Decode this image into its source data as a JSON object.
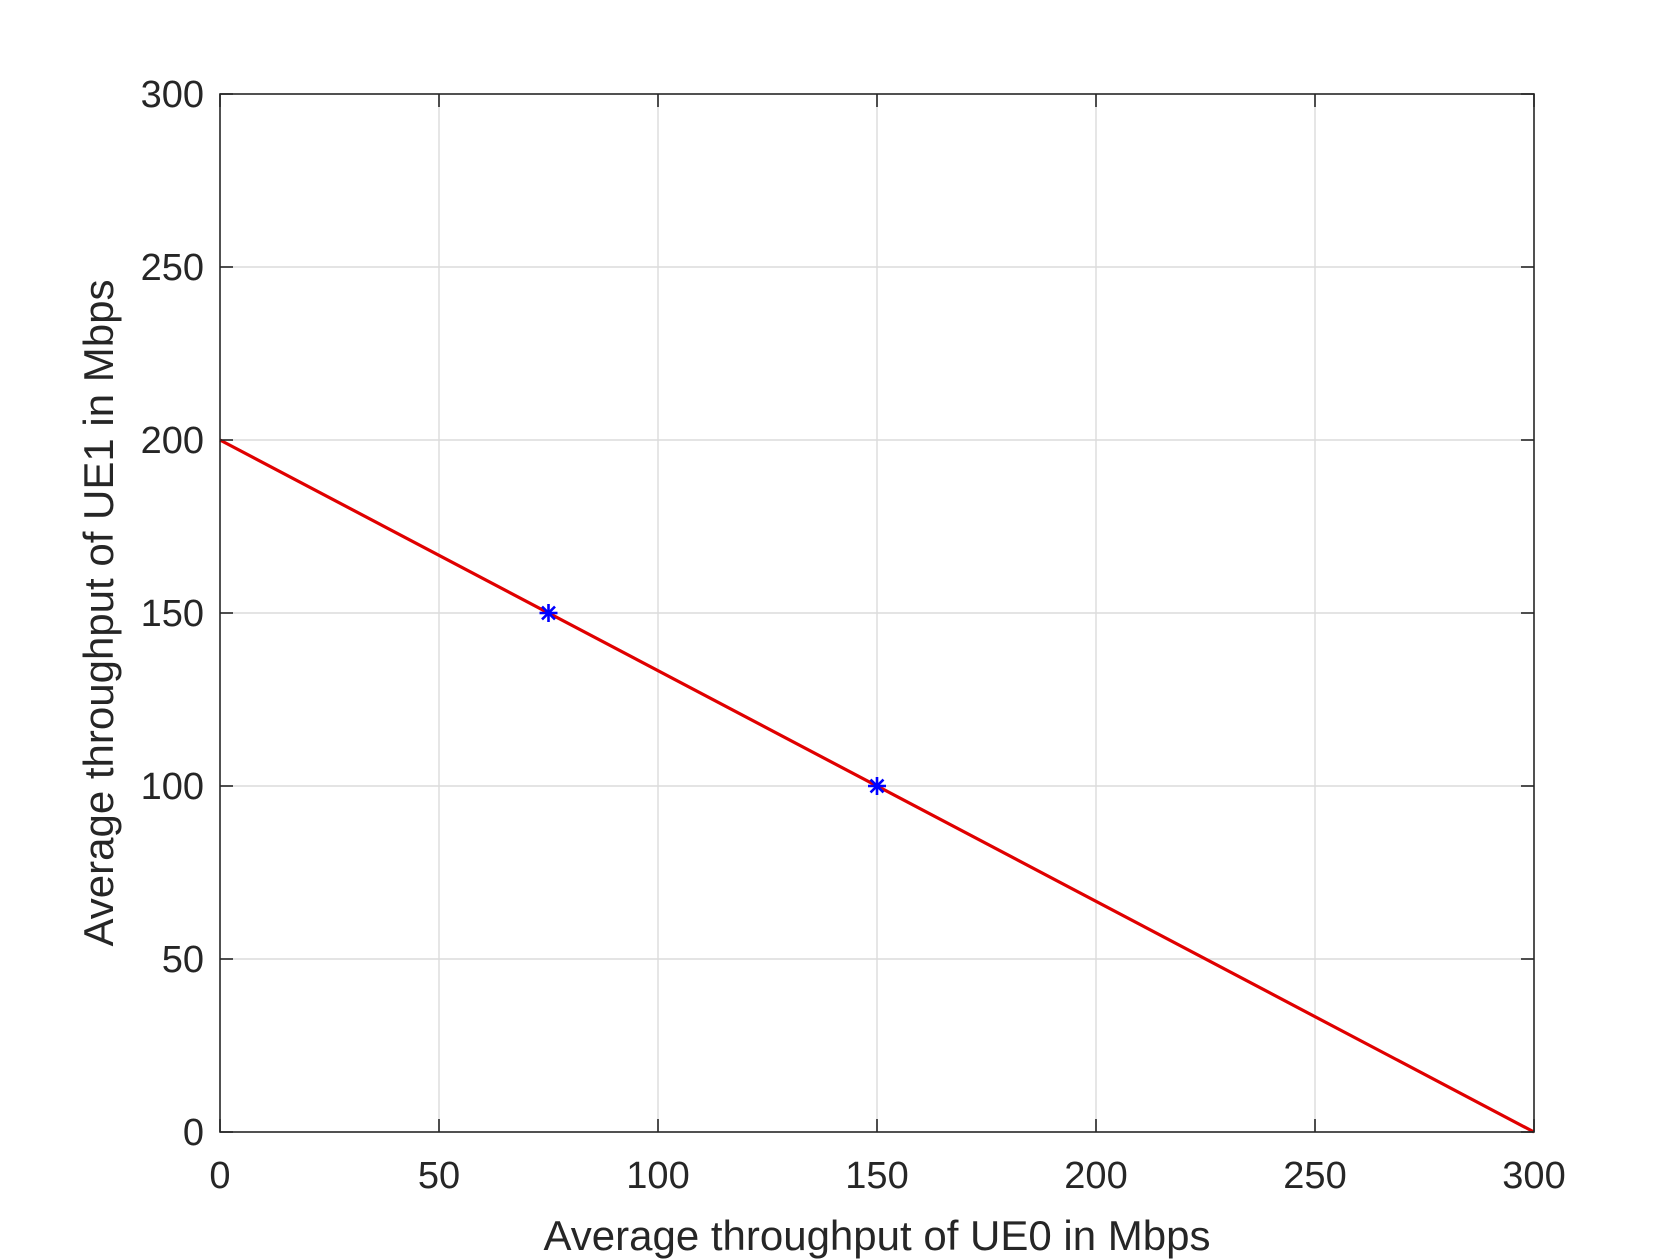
{
  "chart_data": {
    "type": "line",
    "title": "",
    "xlabel": "Average throughput of UE0 in Mbps",
    "ylabel": "Average throughput of UE1 in Mbps",
    "xlim": [
      0,
      300
    ],
    "ylim": [
      0,
      300
    ],
    "xticks": [
      "0",
      "50",
      "100",
      "150",
      "200",
      "250",
      "300"
    ],
    "yticks": [
      "0",
      "50",
      "100",
      "150",
      "200",
      "250",
      "300"
    ],
    "grid": true,
    "legend": "none",
    "series": [
      {
        "kind": "line",
        "color": "#e00000",
        "marker": "none",
        "points": [
          [
            0,
            200
          ],
          [
            300,
            0
          ]
        ]
      },
      {
        "kind": "scatter",
        "color": "#0000ff",
        "marker": "asterisk",
        "points": [
          [
            75,
            150
          ],
          [
            150,
            100
          ]
        ]
      }
    ]
  }
}
